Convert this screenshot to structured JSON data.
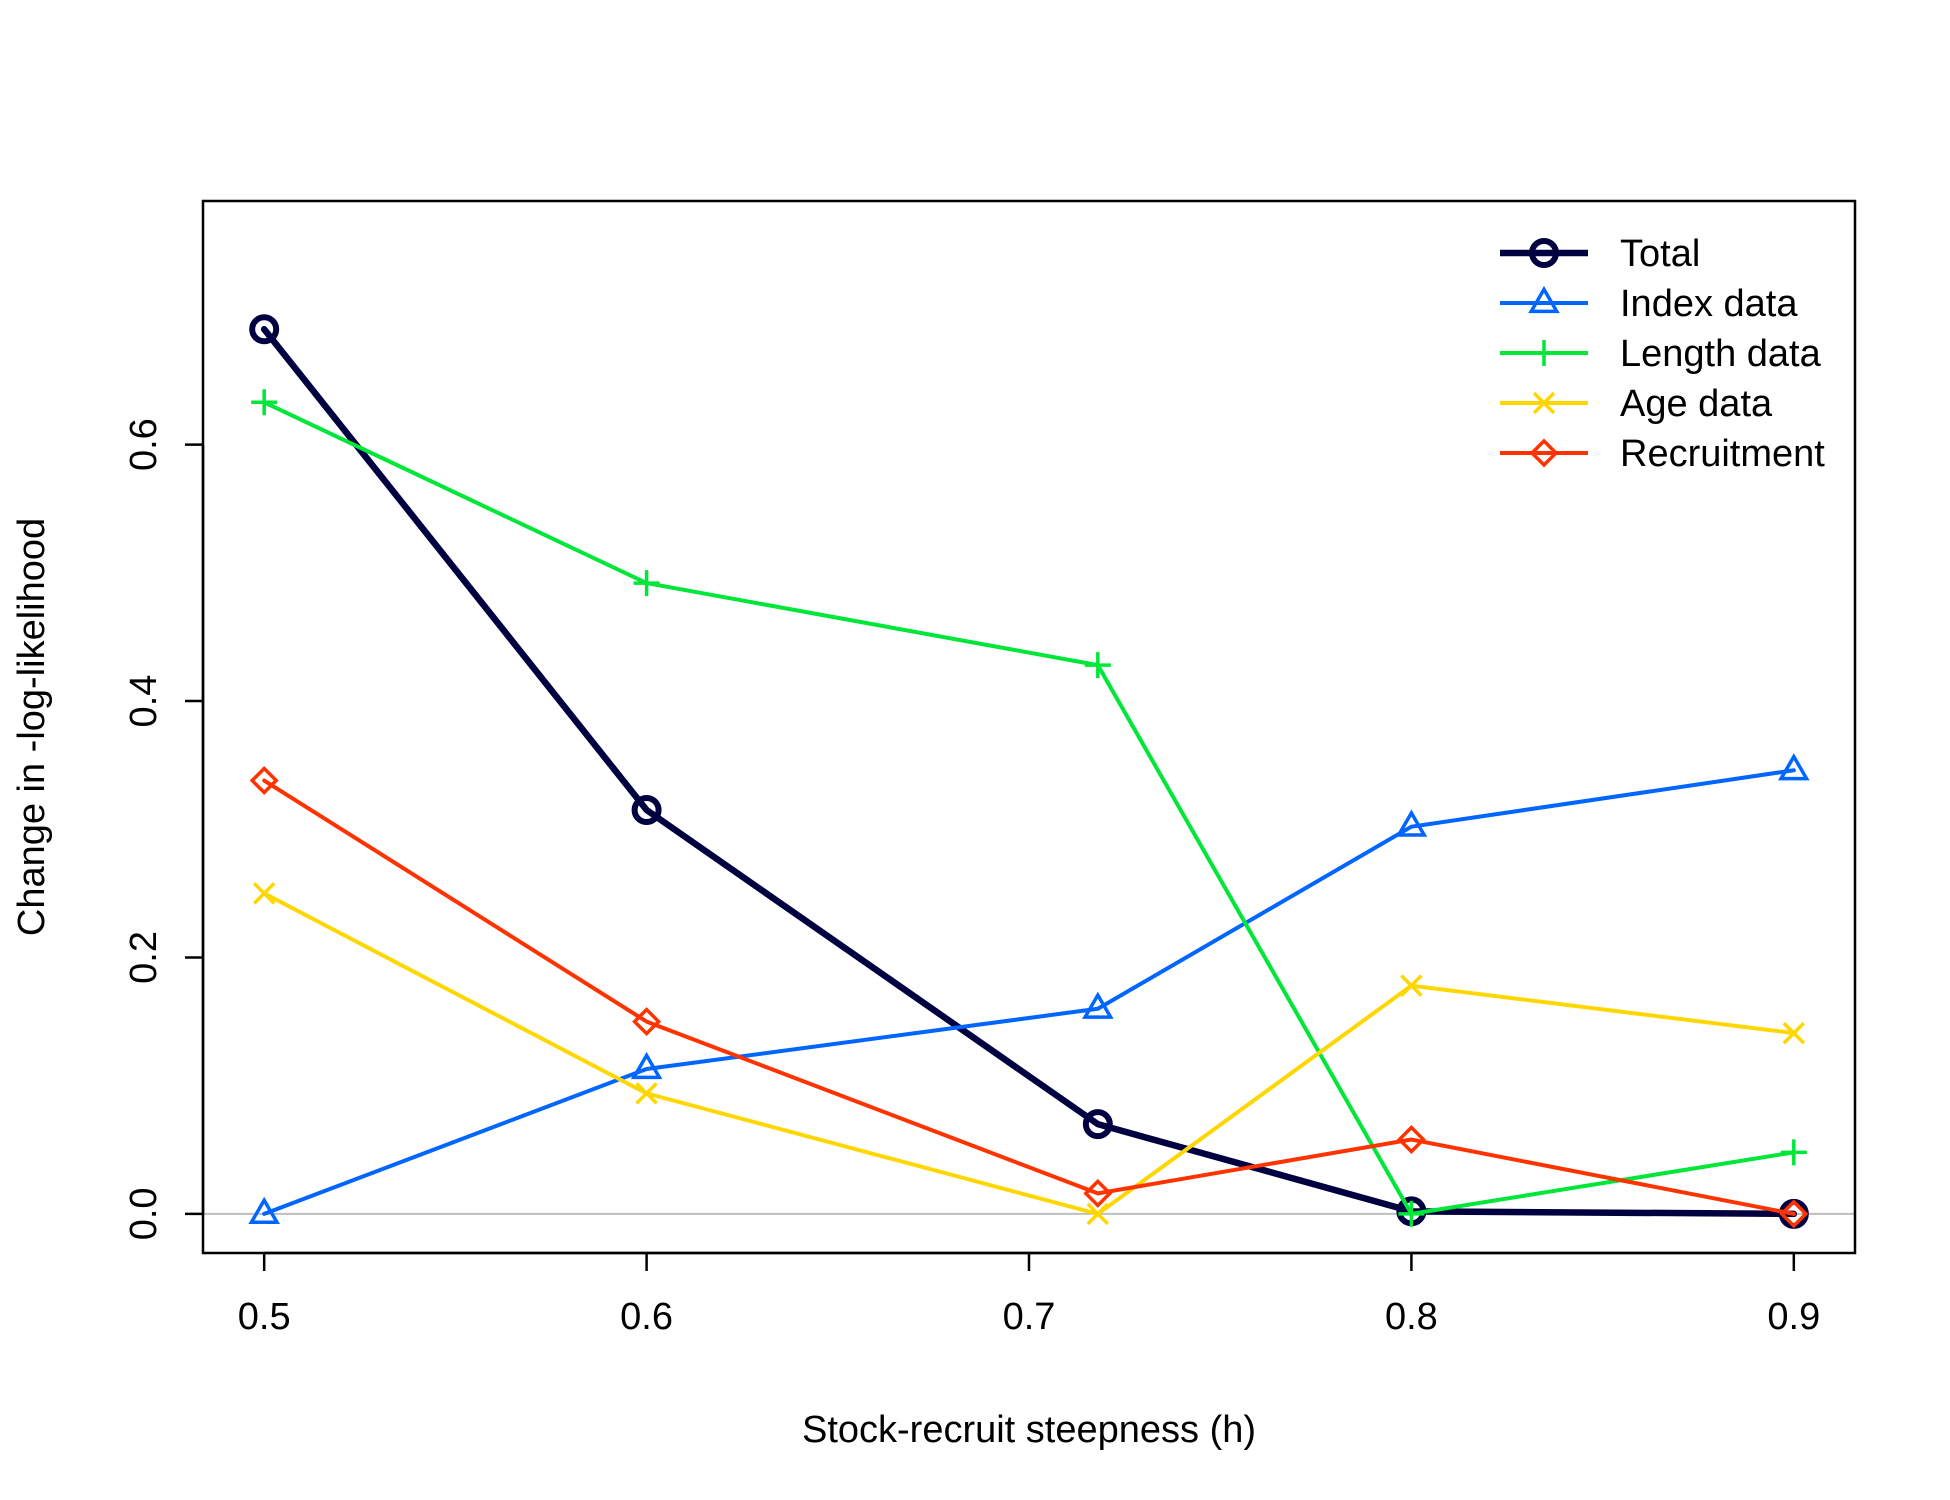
{
  "chart_data": {
    "type": "line",
    "title": "",
    "xlabel": "Stock-recruit steepness (h)",
    "ylabel": "Change in -log-likelihood",
    "xlim": [
      0.484,
      0.916
    ],
    "ylim": [
      -0.0305,
      0.79
    ],
    "xticks": [
      0.5,
      0.6,
      0.7,
      0.8,
      0.9
    ],
    "xtick_labels": [
      "0.5",
      "0.6",
      "0.7",
      "0.8",
      "0.9"
    ],
    "yticks": [
      0.0,
      0.2,
      0.4,
      0.6
    ],
    "ytick_labels": [
      "0.0",
      "0.2",
      "0.4",
      "0.6"
    ],
    "reference_line": {
      "y": 0,
      "color": "#bebebe"
    },
    "grid": false,
    "legend_position": "top-right",
    "x": [
      0.5,
      0.6,
      0.718,
      0.8,
      0.9
    ],
    "series": [
      {
        "name": "Total",
        "color": "#000040",
        "marker": "circle",
        "values": [
          0.69,
          0.315,
          0.07,
          0.002,
          0.0
        ]
      },
      {
        "name": "Index data",
        "color": "#0066ff",
        "marker": "triangle",
        "values": [
          0.0,
          0.113,
          0.16,
          0.302,
          0.346
        ]
      },
      {
        "name": "Length data",
        "color": "#00e639",
        "marker": "plus",
        "values": [
          0.633,
          0.492,
          0.428,
          0.0,
          0.048
        ]
      },
      {
        "name": "Age data",
        "color": "#ffd700",
        "marker": "cross",
        "values": [
          0.25,
          0.094,
          0.0,
          0.178,
          0.141
        ]
      },
      {
        "name": "Recruitment",
        "color": "#ff3300",
        "marker": "diamond",
        "values": [
          0.338,
          0.15,
          0.016,
          0.058,
          0.0
        ]
      }
    ]
  }
}
